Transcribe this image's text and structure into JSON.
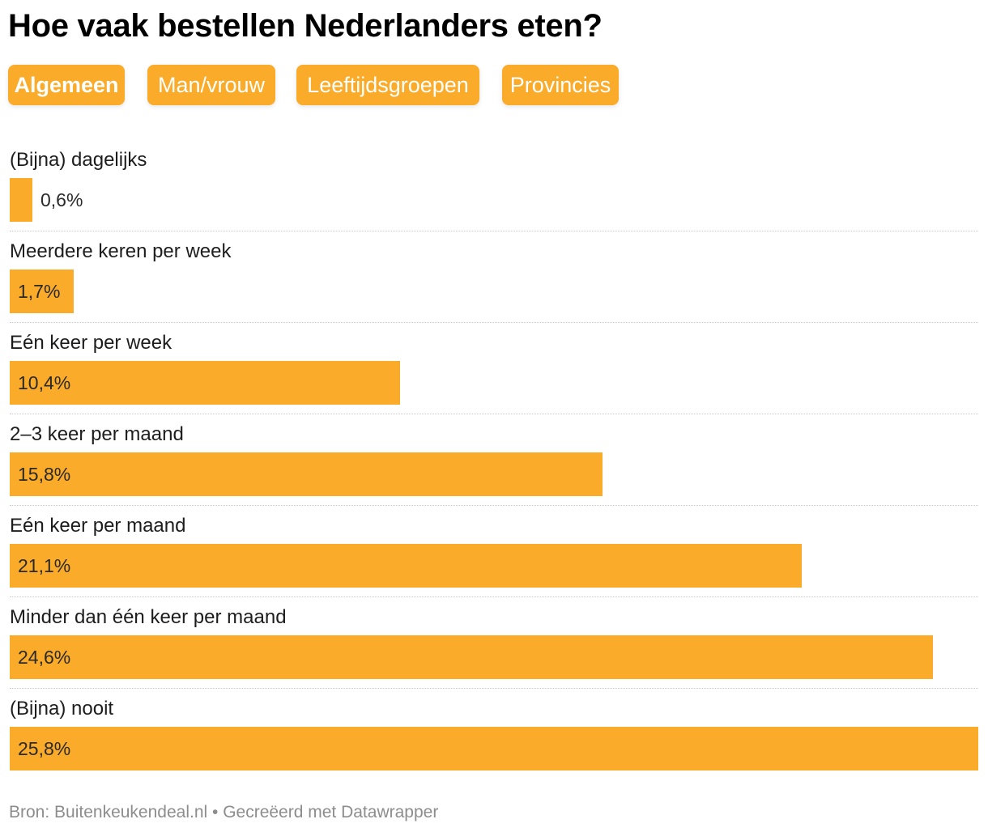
{
  "title": "Hoe vaak bestellen Nederlanders eten?",
  "tabs": [
    {
      "label": "Algemeen",
      "active": true
    },
    {
      "label": "Man/vrouw",
      "active": false
    },
    {
      "label": "Leeftijdsgroepen",
      "active": false
    },
    {
      "label": "Provincies",
      "active": false
    }
  ],
  "colors": {
    "bar": "#fbab2a",
    "tab": "#fbab2a"
  },
  "chart_data": {
    "type": "bar",
    "orientation": "horizontal",
    "categories": [
      "(Bijna) dagelijks",
      "Meerdere keren per week",
      "Eén keer per week",
      "2–3 keer per maand",
      "Eén keer per maand",
      "Minder dan één keer per maand",
      "(Bijna) nooit"
    ],
    "values": [
      0.6,
      1.7,
      10.4,
      15.8,
      21.1,
      24.6,
      25.8
    ],
    "value_labels": [
      "0,6%",
      "1,7%",
      "10,4%",
      "15,8%",
      "21,1%",
      "24,6%",
      "25,8%"
    ],
    "xlim": [
      0,
      25.8
    ],
    "grid": false,
    "legend": "none"
  },
  "footer": {
    "text": "Bron: Buitenkeukendeal.nl • Gecreëerd met Datawrapper"
  }
}
